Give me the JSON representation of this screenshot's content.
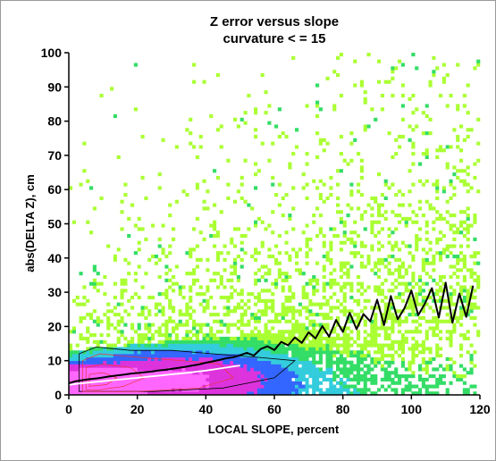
{
  "chart_data": {
    "type": "heatmap",
    "title": "Z error versus slope",
    "subtitle": "curvature < = 15",
    "xlabel": "LOCAL SLOPE, percent",
    "ylabel": "abs(DELTA Z), cm",
    "xlim": [
      0,
      120
    ],
    "ylim": [
      0,
      100
    ],
    "xticks": [
      0,
      20,
      40,
      60,
      80,
      100,
      120
    ],
    "yticks": [
      0,
      10,
      20,
      30,
      40,
      50,
      60,
      70,
      80,
      90,
      100
    ],
    "grid": false,
    "legend": "none",
    "colors": {
      "density_low": "#aaff33",
      "density_mid_low": "#33dd66",
      "density_mid": "#33ccdd",
      "density_mid_high": "#3366ff",
      "density_high": "#dd33dd",
      "density_peak": "#ff66ff",
      "mean_line": "#000000",
      "median_line": "#ffffff",
      "contour": "#000000",
      "contour_inner": "#ee3333"
    },
    "series": [
      {
        "type": "line",
        "color": "#000000",
        "x": [
          0,
          2,
          4,
          6,
          8,
          10,
          12,
          14,
          16,
          18,
          20,
          22,
          24,
          26,
          28,
          30,
          32,
          34,
          36,
          38,
          40,
          42,
          44,
          46,
          48,
          50,
          52,
          54,
          56,
          58,
          60,
          62,
          64,
          66,
          68,
          70,
          72,
          74,
          76,
          78,
          80,
          82,
          84,
          86,
          88,
          90,
          92,
          94,
          96,
          98,
          100,
          102,
          104,
          106,
          108,
          110,
          112,
          114,
          116,
          118
        ],
        "y": [
          3.4,
          4.0,
          4.3,
          4.6,
          4.8,
          5.1,
          5.4,
          5.7,
          5.9,
          6.2,
          6.4,
          6.6,
          6.8,
          7.1,
          7.3,
          7.6,
          7.9,
          8.2,
          8.6,
          8.9,
          9.4,
          9.8,
          10.2,
          10.7,
          11.0,
          11.6,
          12.3,
          11.5,
          13.4,
          14.2,
          13.1,
          15.5,
          14.5,
          16.8,
          15.2,
          18.3,
          16.5,
          20.1,
          17.0,
          21.9,
          18.4,
          24.0,
          19.2,
          23.6,
          21.5,
          27.8,
          20.4,
          28.9,
          22.1,
          25.4,
          30.5,
          23.3,
          26.8,
          31.2,
          22.6,
          32.8,
          21.1,
          29.6,
          22.8,
          31.9
        ]
      },
      {
        "type": "line",
        "color": "#ffffff",
        "x": [
          0,
          2,
          4,
          6,
          8,
          10,
          12,
          14,
          16,
          18,
          20,
          22,
          24,
          26,
          28,
          30,
          32,
          34,
          36,
          38,
          40,
          42,
          44,
          46,
          48,
          50
        ],
        "y": [
          2.9,
          3.2,
          3.4,
          3.6,
          3.8,
          4.0,
          4.2,
          4.4,
          4.6,
          4.8,
          5.0,
          5.2,
          5.4,
          5.6,
          5.8,
          6.0,
          6.2,
          6.4,
          6.6,
          6.9,
          7.1,
          7.4,
          7.7,
          8.0,
          8.3,
          8.6
        ]
      }
    ]
  }
}
